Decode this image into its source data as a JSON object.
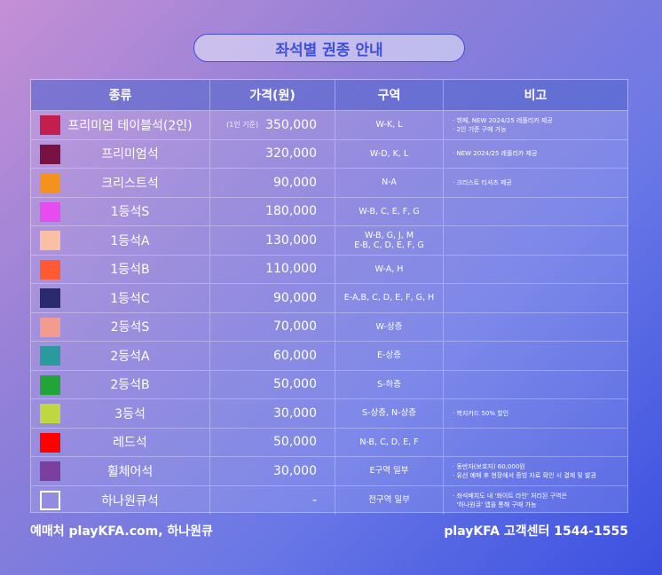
{
  "title": "좌석별 권종 안내",
  "headers": [
    "종류",
    "가격(원)",
    "구역",
    "비고"
  ],
  "rows": [
    {
      "color": "#c41e4f",
      "name": "프리미엄 테이블석(2인)",
      "price_note": "(1인 기준)",
      "price": "350,000",
      "zone": [
        "W-K, L"
      ],
      "notes": [
        "· 뷔페, NEW 2024/25 레플리카 제공",
        "· 2인 기준 구매 가능"
      ]
    },
    {
      "color": "#7a1143",
      "name": "프리미엄석",
      "price_note": "",
      "price": "320,000",
      "zone": [
        "W-D, K, L"
      ],
      "notes": [
        "· NEW 2024/25 레플리카 제공"
      ]
    },
    {
      "color": "#f4921d",
      "name": "크리스트석",
      "price_note": "",
      "price": "90,000",
      "zone": [
        "N-A"
      ],
      "notes": [
        "· 크리스트 티셔츠 제공"
      ]
    },
    {
      "color": "#e74cf0",
      "name": "1등석S",
      "price_note": "",
      "price": "180,000",
      "zone": [
        "W-B, C, E, F, G"
      ],
      "notes": []
    },
    {
      "color": "#f9c0a4",
      "name": "1등석A",
      "price_note": "",
      "price": "130,000",
      "zone": [
        "W-B, G, J, M",
        "E-B, C, D, E, F, G"
      ],
      "notes": []
    },
    {
      "color": "#ff5a33",
      "name": "1등석B",
      "price_note": "",
      "price": "110,000",
      "zone": [
        "W-A, H"
      ],
      "notes": []
    },
    {
      "color": "#2a2a6e",
      "name": "1등석C",
      "price_note": "",
      "price": "90,000",
      "zone": [
        "E-A,B, C, D, E, F, G, H"
      ],
      "notes": []
    },
    {
      "color": "#f29c8f",
      "name": "2등석S",
      "price_note": "",
      "price": "70,000",
      "zone": [
        "W-상층"
      ],
      "notes": []
    },
    {
      "color": "#2b9a9f",
      "name": "2등석A",
      "price_note": "",
      "price": "60,000",
      "zone": [
        "E-상층"
      ],
      "notes": []
    },
    {
      "color": "#21a539",
      "name": "2등석B",
      "price_note": "",
      "price": "50,000",
      "zone": [
        "S-하층"
      ],
      "notes": []
    },
    {
      "color": "#bfd741",
      "name": "3등석",
      "price_note": "",
      "price": "30,000",
      "zone": [
        "S-상층, N-상층"
      ],
      "notes": [
        "· 복지카드 50% 할인"
      ]
    },
    {
      "color": "#ff0000",
      "name": "레드석",
      "price_note": "",
      "price": "50,000",
      "zone": [
        "N-B, C, D, E, F"
      ],
      "notes": []
    },
    {
      "color": "#7b3fa0",
      "name": "휠체어석",
      "price_note": "",
      "price": "30,000",
      "zone": [
        "E구역 일부"
      ],
      "notes": [
        "· 동반자(보호자) 60,000원",
        "· 유선 예매 후 현장에서 증빙 자료 확인 시 결제 및 발권"
      ]
    },
    {
      "color": "outline",
      "name": "하나원큐석",
      "price_note": "",
      "price": "-",
      "zone": [
        "전구역 일부"
      ],
      "notes": [
        "· 좌석배치도 내 '화이트 라인' 처리된 구역은",
        "  '하나원큐' 앱을 통해 구매 가능"
      ]
    }
  ],
  "footer": {
    "left": "예매처 playKFA.com, 하나원큐",
    "right": "playKFA 고객센터 1544-1555"
  }
}
